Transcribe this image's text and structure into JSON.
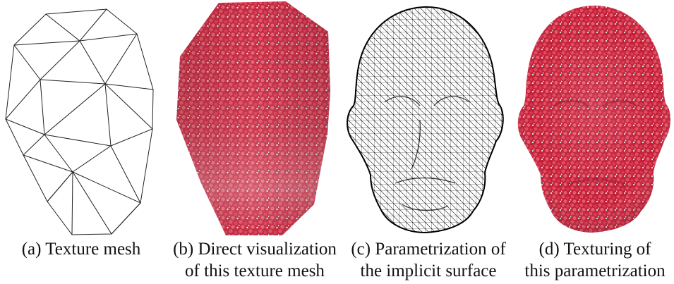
{
  "figure": {
    "panels": [
      {
        "id": "a",
        "caption_lines": [
          "(a) Texture mesh"
        ]
      },
      {
        "id": "b",
        "caption_lines": [
          "(b) Direct visualization",
          "of this texture mesh"
        ]
      },
      {
        "id": "c",
        "caption_lines": [
          "(c) Parametrization of",
          "the implicit surface"
        ]
      },
      {
        "id": "d",
        "caption_lines": [
          "(d) Texturing of",
          "this parametrization"
        ]
      }
    ]
  },
  "colors": {
    "texture_red": "#c4203a",
    "texture_dot": "#e0485c",
    "texture_pale": "#cfe8ec",
    "wire": "#000000"
  }
}
